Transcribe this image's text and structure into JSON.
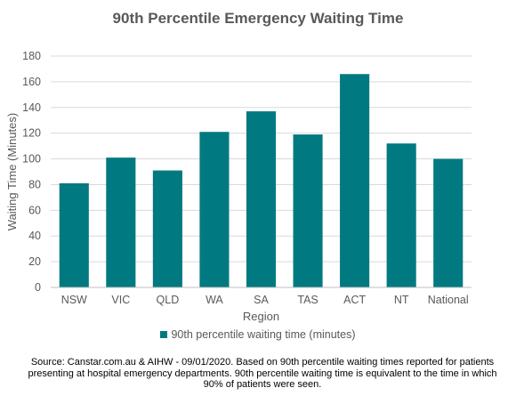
{
  "chart_data": {
    "type": "bar",
    "title": "90th Percentile Emergency Waiting Time",
    "xlabel": "Region",
    "ylabel": "Waiting Time (Minutes)",
    "categories": [
      "NSW",
      "VIC",
      "QLD",
      "WA",
      "SA",
      "TAS",
      "ACT",
      "NT",
      "National"
    ],
    "series": [
      {
        "name": "90th percentile waiting time (minutes)",
        "values": [
          81,
          101,
          91,
          121,
          137,
          119,
          166,
          112,
          100
        ]
      }
    ],
    "ylim": [
      0,
      180
    ],
    "yticks": [
      0,
      20,
      40,
      60,
      80,
      100,
      120,
      140,
      160,
      180
    ],
    "grid": true,
    "legend_position": "bottom",
    "bar_color": "#007A80",
    "grid_color": "#D9D9D9",
    "axis_color": "#BFBFBF"
  },
  "source_text": "Source: Canstar.com.au & AIHW - 09/01/2020. Based on 90th percentile waiting times reported for patients presenting at hospital emergency departments. 90th percentile waiting time is equivalent to the time in which 90% of patients were seen."
}
